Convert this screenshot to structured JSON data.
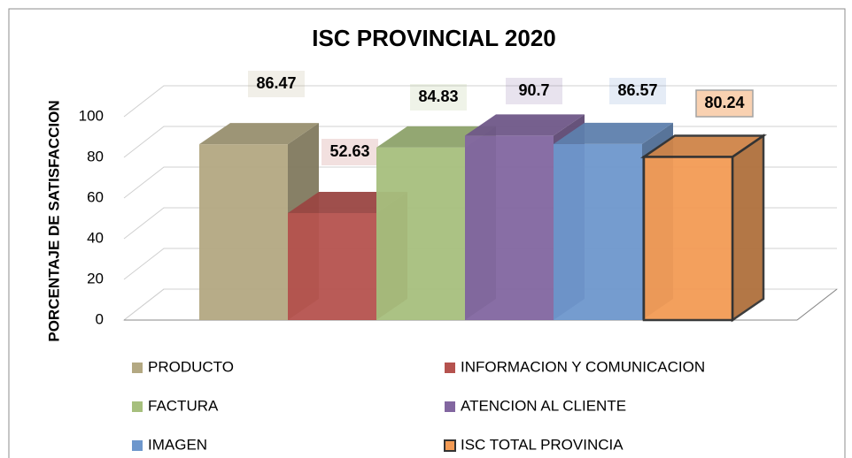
{
  "chart_data": {
    "type": "bar3d",
    "title": "ISC PROVINCIAL 2020",
    "y_label": "PORCENTAJE DE SATISFACCION",
    "ylim": [
      0,
      100
    ],
    "yticks": [
      0,
      20,
      40,
      60,
      80,
      100
    ],
    "grid": true,
    "series": [
      {
        "name": "PRODUCTO",
        "color": "#b3a882",
        "values": [
          86.47
        ]
      },
      {
        "name": "INFORMACION Y COMUNICACION",
        "color": "#b5524e",
        "values": [
          52.63
        ]
      },
      {
        "name": "FACTURA",
        "color": "#a6bf7d",
        "values": [
          84.83
        ]
      },
      {
        "name": "ATENCION AL CLIENTE",
        "color": "#8266a0",
        "values": [
          90.7
        ]
      },
      {
        "name": "IMAGEN",
        "color": "#6e97cc",
        "values": [
          86.57
        ]
      },
      {
        "name": "ISC TOTAL PROVINCIA",
        "color": "#f39b55",
        "values": [
          80.24
        ]
      }
    ]
  }
}
